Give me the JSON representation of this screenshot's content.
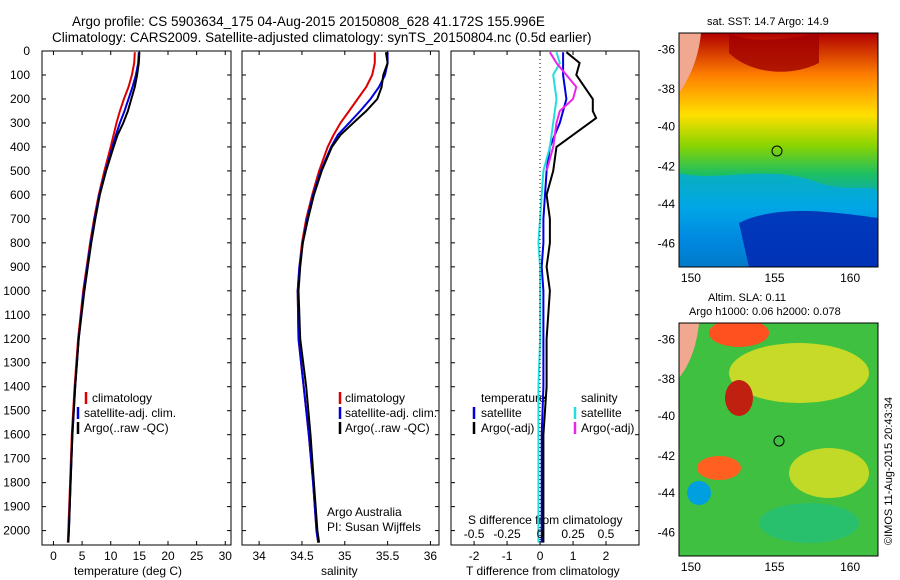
{
  "header": {
    "line1": "Argo profile: CS 5903634_175 04-Aug-2015 20150808_628 41.172S 155.996E",
    "line2": "Climatology: CARS2009. Satellite-adjusted climatology: synTS_20150804.nc (0.5d earlier)"
  },
  "colors": {
    "climatology": "#dd0000",
    "satellite": "#0000dd",
    "argo": "#000000",
    "sal_satellite": "#22dddd",
    "sal_argo": "#ee22ee"
  },
  "panels": {
    "temperature": {
      "xlabel": "temperature (deg C)",
      "legend": [
        "climatology",
        "satellite-adj. clim.",
        "Argo(..raw -QC)"
      ]
    },
    "salinity": {
      "xlabel": "salinity",
      "legend": [
        "climatology",
        "satellite-adj. clim.",
        "Argo(..raw -QC)"
      ],
      "credit1": "Argo Australia",
      "credit2": "PI: Susan Wijffels"
    },
    "difference": {
      "xlabel": "T difference from climatology",
      "toplabel": "S difference from climatology",
      "legend_left_title": "temperature",
      "legend_left": [
        "satellite",
        "Argo(-adj)"
      ],
      "legend_right_title": "salinity",
      "legend_right": [
        "satellite",
        "Argo(-adj)"
      ]
    }
  },
  "maps": {
    "sst": {
      "title": "sat. SST: 14.7 Argo: 14.9"
    },
    "sla": {
      "title1": "Altim. SLA: 0.11",
      "title2": "Argo h1000: 0.06 h2000: 0.078"
    },
    "xticks": [
      "150",
      "155",
      "160"
    ],
    "yticks": [
      "-36",
      "-38",
      "-40",
      "-42",
      "-44",
      "-46"
    ],
    "stamp": "©IMOS 11-Aug-2015 20:43:34"
  },
  "chart_data": [
    {
      "type": "line",
      "title": "",
      "xlabel": "temperature (deg C)",
      "ylabel": "",
      "xlim": [
        -2,
        31
      ],
      "ylim": [
        2060,
        0
      ],
      "xticks": [
        0,
        5,
        10,
        15,
        20,
        25,
        30
      ],
      "yticks": [
        0,
        100,
        200,
        300,
        400,
        500,
        600,
        700,
        800,
        900,
        1000,
        1100,
        1200,
        1300,
        1400,
        1500,
        1600,
        1700,
        1800,
        1900,
        2000
      ],
      "series": [
        {
          "name": "climatology",
          "y": [
            5,
            50,
            100,
            150,
            200,
            250,
            300,
            350,
            400,
            500,
            600,
            700,
            800,
            900,
            1000,
            1200,
            1400,
            1600,
            1800,
            2000,
            2050
          ],
          "x": [
            14.2,
            14.1,
            13.7,
            13.1,
            12.3,
            11.6,
            11.0,
            10.5,
            10.0,
            8.9,
            7.9,
            7.1,
            6.4,
            5.8,
            5.2,
            4.3,
            3.7,
            3.2,
            2.9,
            2.6,
            2.5
          ]
        },
        {
          "name": "satellite-adj. clim.",
          "y": [
            5,
            50,
            100,
            150,
            200,
            250,
            300,
            350,
            400,
            500,
            600,
            700,
            800,
            900,
            1000,
            1200,
            1400,
            1600,
            1800,
            2000,
            2050
          ],
          "x": [
            14.9,
            14.8,
            14.4,
            13.8,
            13.1,
            12.4,
            11.6,
            10.9,
            10.3,
            9.1,
            8.0,
            7.2,
            6.5,
            5.9,
            5.3,
            4.4,
            3.8,
            3.3,
            3.0,
            2.7,
            2.6
          ]
        },
        {
          "name": "Argo(..raw -QC)",
          "y": [
            5,
            50,
            100,
            150,
            200,
            250,
            300,
            350,
            400,
            500,
            600,
            700,
            800,
            900,
            1000,
            1200,
            1400,
            1600,
            1800,
            2000,
            2050
          ],
          "x": [
            15.0,
            14.9,
            14.6,
            14.2,
            13.6,
            13.0,
            12.2,
            11.2,
            10.5,
            9.2,
            8.1,
            7.3,
            6.6,
            6.0,
            5.4,
            4.4,
            3.8,
            3.3,
            3.0,
            2.7,
            2.6
          ]
        }
      ]
    },
    {
      "type": "line",
      "title": "",
      "xlabel": "salinity",
      "ylabel": "",
      "xlim": [
        33.8,
        36.1
      ],
      "ylim": [
        2060,
        0
      ],
      "xticks": [
        34,
        34.5,
        35,
        35.5,
        36
      ],
      "series": [
        {
          "name": "climatology",
          "y": [
            5,
            50,
            100,
            150,
            200,
            250,
            300,
            350,
            400,
            500,
            600,
            700,
            800,
            900,
            1000,
            1200,
            1400,
            1600,
            1800,
            2000,
            2050
          ],
          "x": [
            35.35,
            35.35,
            35.32,
            35.25,
            35.15,
            35.05,
            34.95,
            34.87,
            34.8,
            34.7,
            34.62,
            34.55,
            34.5,
            34.47,
            34.45,
            34.46,
            34.52,
            34.58,
            34.63,
            34.67,
            34.69
          ]
        },
        {
          "name": "satellite-adj. clim.",
          "y": [
            5,
            50,
            100,
            150,
            200,
            250,
            300,
            350,
            400,
            500,
            600,
            700,
            800,
            900,
            1000,
            1200,
            1400,
            1600,
            1800,
            2000,
            2050
          ],
          "x": [
            35.5,
            35.5,
            35.47,
            35.4,
            35.3,
            35.18,
            35.05,
            34.92,
            34.84,
            34.72,
            34.63,
            34.56,
            34.51,
            34.47,
            34.45,
            34.46,
            34.52,
            34.58,
            34.63,
            34.67,
            34.69
          ]
        },
        {
          "name": "Argo(..raw -QC)",
          "y": [
            5,
            50,
            100,
            150,
            200,
            250,
            300,
            350,
            400,
            500,
            600,
            700,
            800,
            900,
            1000,
            1200,
            1400,
            1600,
            1800,
            2000,
            2050
          ],
          "x": [
            35.48,
            35.5,
            35.45,
            35.43,
            35.38,
            35.25,
            35.1,
            34.95,
            34.85,
            34.73,
            34.64,
            34.57,
            34.51,
            34.48,
            34.46,
            34.48,
            34.55,
            34.6,
            34.64,
            34.68,
            34.7
          ]
        }
      ]
    },
    {
      "type": "line",
      "title": "",
      "xlabel": "T difference from climatology",
      "ylabel": "",
      "xlim": [
        -2.7,
        3.0
      ],
      "ylim": [
        2060,
        0
      ],
      "xticks": [
        -2,
        -1,
        0,
        1,
        2
      ],
      "xticks_top": [
        -0.5,
        -0.25,
        0,
        0.25,
        0.5
      ],
      "top_axis_label": "S difference from climatology",
      "series": [
        {
          "name": "temperature satellite",
          "y": [
            5,
            50,
            100,
            200,
            300,
            400,
            500,
            600,
            700,
            800,
            900,
            1000,
            1200,
            1400,
            1600,
            1800,
            2000,
            2050
          ],
          "x": [
            0.7,
            0.7,
            0.7,
            0.8,
            0.6,
            0.3,
            0.2,
            0.15,
            0.1,
            0.1,
            0.05,
            0.1,
            0.1,
            0.1,
            0.05,
            0.05,
            0.05,
            0.05
          ]
        },
        {
          "name": "temperature Argo(-adj)",
          "y": [
            5,
            50,
            100,
            200,
            250,
            280,
            300,
            350,
            400,
            500,
            600,
            700,
            800,
            900,
            1000,
            1200,
            1400,
            1600,
            1800,
            2000,
            2050
          ],
          "x": [
            0.8,
            1.2,
            1.1,
            1.6,
            1.6,
            1.7,
            1.5,
            1.0,
            0.5,
            0.4,
            0.2,
            0.3,
            0.3,
            0.2,
            0.3,
            0.2,
            0.2,
            0.1,
            0.1,
            0.1,
            0.1
          ]
        },
        {
          "name": "salinity satellite",
          "y": [
            5,
            50,
            100,
            200,
            300,
            400,
            500,
            600,
            700,
            800,
            900,
            1000,
            1200,
            1400,
            1600,
            1800,
            2000,
            2050
          ],
          "x": [
            0.5,
            0.6,
            0.4,
            0.5,
            0.4,
            0.3,
            0.1,
            0.05,
            0.0,
            -0.05,
            0.0,
            0.0,
            0.0,
            -0.05,
            -0.05,
            -0.05,
            -0.05,
            -0.05
          ]
        },
        {
          "name": "salinity Argo(-adj)",
          "y": [
            5,
            50,
            100,
            150,
            200,
            250,
            300,
            400,
            500
          ],
          "x": [
            0.3,
            0.5,
            0.8,
            1.1,
            1.0,
            0.6,
            0.5,
            0.4,
            0.2
          ]
        }
      ]
    }
  ]
}
